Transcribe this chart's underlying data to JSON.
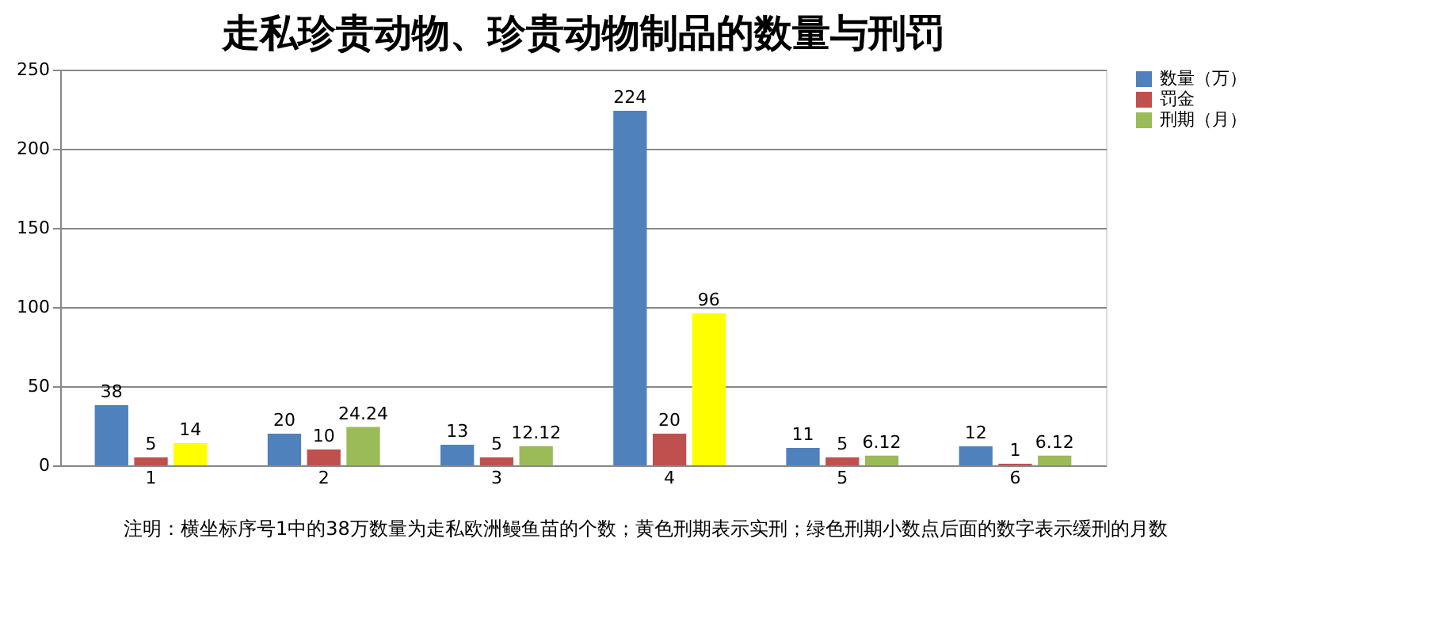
{
  "chart_data": {
    "type": "bar",
    "title": "走私珍贵动物、珍贵动物制品的数量与刑罚",
    "categories": [
      "1",
      "2",
      "3",
      "4",
      "5",
      "6"
    ],
    "series": [
      {
        "name": "数量（万）",
        "color": "#4f81bd",
        "values": [
          38,
          20,
          13,
          224,
          11,
          12
        ]
      },
      {
        "name": "罚金",
        "color": "#c0504d",
        "values": [
          5,
          10,
          5,
          20,
          5,
          1
        ]
      },
      {
        "name": "刑期（月）",
        "color": "#9bbb59",
        "colors": [
          "#ffff00",
          "#9bbb59",
          "#9bbb59",
          "#ffff00",
          "#9bbb59",
          "#9bbb59"
        ],
        "values": [
          14,
          24.24,
          12.12,
          96,
          6.12,
          6.12
        ]
      }
    ],
    "ylim": [
      0,
      250
    ],
    "yticks": [
      0,
      50,
      100,
      150,
      200,
      250
    ],
    "grid": "y",
    "legend": "right",
    "data_labels": true,
    "annotations": [
      "注明：横坐标序号1中的38万数量为走私欧洲鳗鱼苗的个数；黄色刑期表示实刑；绿色刑期小数点后面的数字表示缓刑的月数"
    ]
  }
}
